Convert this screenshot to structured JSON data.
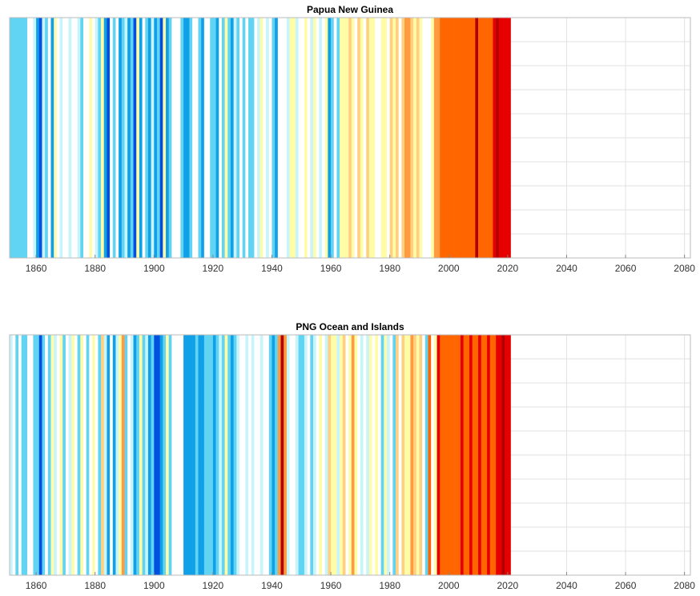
{
  "chart_data": [
    {
      "type": "stripes",
      "title": "Papua New Guinea",
      "x": [
        1851,
        1852,
        1853,
        1854,
        1855,
        1856,
        1857,
        1858,
        1859,
        1860,
        1861,
        1862,
        1863,
        1864,
        1865,
        1866,
        1867,
        1868,
        1869,
        1870,
        1871,
        1872,
        1873,
        1874,
        1875,
        1876,
        1877,
        1878,
        1879,
        1880,
        1881,
        1882,
        1883,
        1884,
        1885,
        1886,
        1887,
        1888,
        1889,
        1890,
        1891,
        1892,
        1893,
        1894,
        1895,
        1896,
        1897,
        1898,
        1899,
        1900,
        1901,
        1902,
        1903,
        1904,
        1905,
        1906,
        1907,
        1908,
        1909,
        1910,
        1911,
        1912,
        1913,
        1914,
        1915,
        1916,
        1917,
        1918,
        1919,
        1920,
        1921,
        1922,
        1923,
        1924,
        1925,
        1926,
        1927,
        1928,
        1929,
        1930,
        1931,
        1932,
        1933,
        1934,
        1935,
        1936,
        1937,
        1938,
        1939,
        1940,
        1941,
        1942,
        1943,
        1944,
        1945,
        1946,
        1947,
        1948,
        1949,
        1950,
        1951,
        1952,
        1953,
        1954,
        1955,
        1956,
        1957,
        1958,
        1959,
        1960,
        1961,
        1962,
        1963,
        1964,
        1965,
        1966,
        1967,
        1968,
        1969,
        1970,
        1971,
        1972,
        1973,
        1974,
        1975,
        1976,
        1977,
        1978,
        1979,
        1980,
        1981,
        1982,
        1983,
        1984,
        1985,
        1986,
        1987,
        1988,
        1989,
        1990,
        1991,
        1992,
        1993,
        1994,
        1995,
        1996,
        1997,
        1998,
        1999,
        2000,
        2001,
        2002,
        2003,
        2004,
        2005,
        2006,
        2007,
        2008,
        2009,
        2010,
        2011,
        2012,
        2013,
        2014,
        2015,
        2016,
        2017,
        2018,
        2019,
        2020
      ],
      "palette": {
        "D": "#0050e0",
        "B": "#10a0e8",
        "L": "#60d4f2",
        "C": "#c8f4fb",
        "W": "#ffffff",
        "Y": "#fffca8",
        "O": "#ffd080",
        "R": "#ff9a40",
        "X": "#ff6600",
        "Z": "#e60000",
        "K": "#b00000"
      },
      "stripe_colors": "LLLLLLWWCBDCLWBYWCWWCWWCLWWYWCLYBDWLWBLCBLDYBWLBCBLDYBLWWWLBBLWWLBWWLLBWLYLBCLWLWLLWCYWCWLBWWWCYYCWWYWCYWCWYBLWLYYYOYWOYWOYYWWYYWOYOWORROYOYWWWYRRXXXXXXXXXXXXKXXXXXZKZZZZ",
      "xlim": [
        1851,
        2082
      ],
      "xticks": [
        1860,
        1880,
        1900,
        1920,
        1940,
        1960,
        1980,
        2000,
        2020,
        2040,
        2060,
        2080
      ],
      "grid": true
    },
    {
      "type": "stripes",
      "title": "PNG Ocean and Islands",
      "x": [
        1851,
        1852,
        1853,
        1854,
        1855,
        1856,
        1857,
        1858,
        1859,
        1860,
        1861,
        1862,
        1863,
        1864,
        1865,
        1866,
        1867,
        1868,
        1869,
        1870,
        1871,
        1872,
        1873,
        1874,
        1875,
        1876,
        1877,
        1878,
        1879,
        1880,
        1881,
        1882,
        1883,
        1884,
        1885,
        1886,
        1887,
        1888,
        1889,
        1890,
        1891,
        1892,
        1893,
        1894,
        1895,
        1896,
        1897,
        1898,
        1899,
        1900,
        1901,
        1902,
        1903,
        1904,
        1905,
        1906,
        1907,
        1908,
        1909,
        1910,
        1911,
        1912,
        1913,
        1914,
        1915,
        1916,
        1917,
        1918,
        1919,
        1920,
        1921,
        1922,
        1923,
        1924,
        1925,
        1926,
        1927,
        1928,
        1929,
        1930,
        1931,
        1932,
        1933,
        1934,
        1935,
        1936,
        1937,
        1938,
        1939,
        1940,
        1941,
        1942,
        1943,
        1944,
        1945,
        1946,
        1947,
        1948,
        1949,
        1950,
        1951,
        1952,
        1953,
        1954,
        1955,
        1956,
        1957,
        1958,
        1959,
        1960,
        1961,
        1962,
        1963,
        1964,
        1965,
        1966,
        1967,
        1968,
        1969,
        1970,
        1971,
        1972,
        1973,
        1974,
        1975,
        1976,
        1977,
        1978,
        1979,
        1980,
        1981,
        1982,
        1983,
        1984,
        1985,
        1986,
        1987,
        1988,
        1989,
        1990,
        1991,
        1992,
        1993,
        1994,
        1995,
        1996,
        1997,
        1998,
        1999,
        2000,
        2001,
        2002,
        2003,
        2004,
        2005,
        2006,
        2007,
        2008,
        2009,
        2010,
        2011,
        2012,
        2013,
        2014,
        2015,
        2016,
        2017,
        2018,
        2019,
        2020
      ],
      "palette": {
        "D": "#0050e0",
        "B": "#10a0e8",
        "L": "#60d4f2",
        "C": "#c8f4fb",
        "W": "#ffffff",
        "Y": "#fffca8",
        "O": "#ffd080",
        "R": "#ff9a40",
        "X": "#ff6600",
        "Z": "#e60000",
        "K": "#b00000"
      },
      "stripe_colors": "CWLWLLWWLLDLWLYCWYLWCYWLYWLWYWLOCBWBCYRLWCBLYLCBLDDBLYLWWWWBBBBLBBLLLBLCLYLBLCWWCWCWWCWWLBLRKRCWWCLLCWLCWYWCOYYCYOWYRYWCWCYWYWLYCWLOWOYYROYOWLXWYZXXXXXXXZXXZXXZXXZXXZZKZZ",
      "xlim": [
        1851,
        2082
      ],
      "xticks": [
        1860,
        1880,
        1900,
        1920,
        1940,
        1960,
        1980,
        2000,
        2020,
        2040,
        2060,
        2080
      ],
      "grid": true
    }
  ]
}
